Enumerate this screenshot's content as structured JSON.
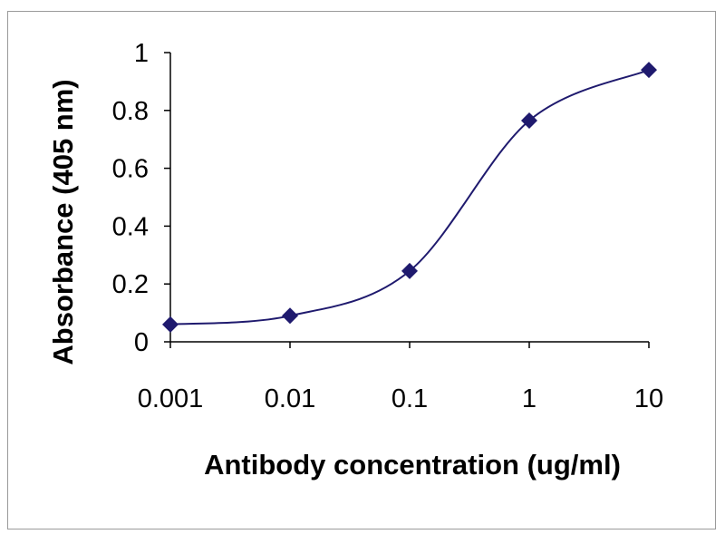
{
  "chart_data": {
    "type": "line",
    "title": "",
    "xlabel": "Antibody concentration (ug/ml)",
    "ylabel": "Absorbance (405 nm)",
    "x_scale": "log",
    "x": [
      0.001,
      0.01,
      0.1,
      1,
      10
    ],
    "x_tick_labels": [
      "0.001",
      "0.01",
      "0.1",
      "1",
      "10"
    ],
    "y_ticks": [
      0,
      0.2,
      0.4,
      0.6,
      0.8,
      1
    ],
    "y_tick_labels": [
      "0",
      "0.2",
      "0.4",
      "0.6",
      "0.8",
      "1"
    ],
    "ylim": [
      0,
      1
    ],
    "grid": false,
    "legend": "none",
    "series": [
      {
        "values": [
          0.06,
          0.09,
          0.245,
          0.765,
          0.94
        ],
        "color": "#1f1a6e",
        "marker": "diamond",
        "line": "smoothed"
      }
    ]
  }
}
